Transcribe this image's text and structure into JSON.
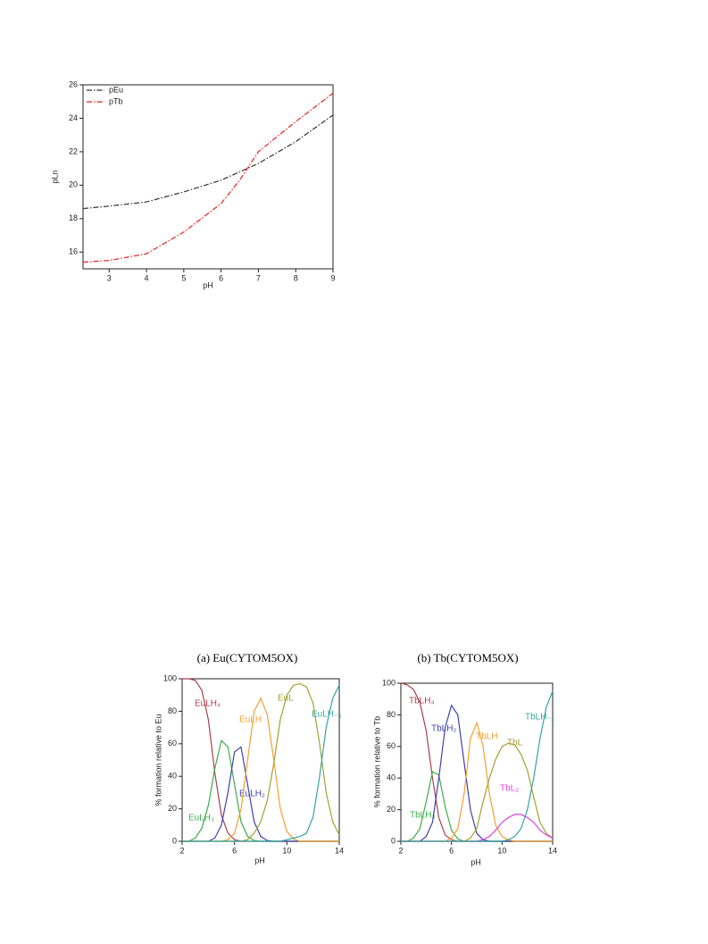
{
  "chart_data": [
    {
      "type": "line",
      "x_label": "pH",
      "y_label": "pLn",
      "legend": "upper left",
      "x": [
        2.3,
        3,
        4,
        5,
        6,
        6.5,
        7,
        8,
        9
      ],
      "series": [
        {
          "name": "pEu",
          "color": "#333333",
          "values": [
            18.6,
            18.75,
            19.0,
            19.6,
            20.3,
            20.8,
            21.3,
            22.6,
            24.2
          ]
        },
        {
          "name": "pTb",
          "color": "#e52222",
          "values": [
            15.4,
            15.5,
            15.9,
            17.2,
            18.9,
            20.3,
            22.0,
            23.8,
            25.5
          ]
        }
      ],
      "xlim": [
        2.3,
        9
      ],
      "xticks": [
        3,
        4,
        5,
        6,
        7,
        8,
        9
      ],
      "ylim": [
        15,
        26
      ],
      "yticks": [
        16,
        18,
        20,
        22,
        24,
        26
      ]
    },
    {
      "type": "line",
      "title": "(a) Eu(CYTOM5OX)",
      "x_label": "pH",
      "y_label": "% formation relative to Eu",
      "x": [
        2,
        2.5,
        3,
        3.5,
        4,
        4.5,
        5,
        5.5,
        6,
        6.5,
        7,
        7.5,
        8,
        8.5,
        9,
        9.5,
        10,
        10.5,
        11,
        11.5,
        12,
        12.5,
        13,
        13.5,
        14
      ],
      "series": [
        {
          "name": "EuLH₄",
          "color": "#a8404c",
          "values": [
            100,
            100,
            99,
            93,
            75,
            42,
            16,
            5,
            1,
            0,
            0,
            0,
            0,
            0,
            0,
            0,
            0,
            0,
            0,
            0,
            0,
            0,
            0,
            0,
            0
          ]
        },
        {
          "name": "EuLH₃",
          "color": "#3cae4a",
          "values": [
            0,
            0,
            2,
            8,
            22,
            45,
            62,
            58,
            35,
            12,
            3,
            0.5,
            0,
            0,
            0,
            0,
            0,
            0,
            0,
            0,
            0,
            0,
            0,
            0,
            0
          ]
        },
        {
          "name": "EuLH₂",
          "color": "#4040b0",
          "values": [
            0,
            0,
            0,
            0,
            0,
            2,
            10,
            30,
            55,
            58,
            35,
            12,
            3,
            0.5,
            0,
            0,
            0,
            0,
            0,
            0,
            0,
            0,
            0,
            0,
            0
          ]
        },
        {
          "name": "EuLH",
          "color": "#f5a030",
          "values": [
            0,
            0,
            0,
            0,
            0,
            0,
            0,
            1,
            5,
            20,
            50,
            80,
            88,
            78,
            50,
            20,
            6,
            1.5,
            0,
            0,
            0,
            0,
            0,
            0,
            0
          ]
        },
        {
          "name": "EuL",
          "color": "#a3a032",
          "values": [
            0,
            0,
            0,
            0,
            0,
            0,
            0,
            0,
            0,
            0,
            1,
            5,
            12,
            25,
            48,
            75,
            90,
            96,
            97,
            95,
            85,
            60,
            30,
            12,
            4
          ]
        },
        {
          "name": "EuLH₋₁",
          "color": "#33a3a3",
          "values": [
            0,
            0,
            0,
            0,
            0,
            0,
            0,
            0,
            0,
            0,
            0,
            0,
            0,
            0,
            0,
            0,
            1,
            2,
            3,
            5,
            15,
            40,
            70,
            88,
            96
          ]
        }
      ],
      "xlim": [
        2,
        14
      ],
      "xticks": [
        2,
        6,
        10,
        14
      ],
      "ylim": [
        0,
        100
      ],
      "yticks": [
        0,
        20,
        40,
        60,
        80,
        100
      ]
    },
    {
      "type": "line",
      "title": "(b) Tb(CYTOM5OX)",
      "x_label": "pH",
      "y_label": "% formation relative to Tb",
      "x": [
        2,
        2.5,
        3,
        3.5,
        4,
        4.5,
        5,
        5.5,
        6,
        6.5,
        7,
        7.5,
        8,
        8.5,
        9,
        9.5,
        10,
        10.5,
        11,
        11.5,
        12,
        12.5,
        13,
        13.5,
        14
      ],
      "series": [
        {
          "name": "TbLH₄",
          "color": "#a8404c",
          "values": [
            100,
            99,
            96,
            88,
            70,
            40,
            15,
            4,
            1,
            0,
            0,
            0,
            0,
            0,
            0,
            0,
            0,
            0,
            0,
            0,
            0,
            0,
            0,
            0,
            0
          ]
        },
        {
          "name": "TbLH₃",
          "color": "#3cae4a",
          "values": [
            0,
            0,
            2,
            8,
            25,
            44,
            42,
            22,
            7,
            1.5,
            0,
            0,
            0,
            0,
            0,
            0,
            0,
            0,
            0,
            0,
            0,
            0,
            0,
            0,
            0
          ]
        },
        {
          "name": "TbLH₂",
          "color": "#4040b0",
          "values": [
            0,
            0,
            0,
            0,
            3,
            12,
            40,
            72,
            86,
            80,
            50,
            20,
            5,
            1,
            0,
            0,
            0,
            0,
            0,
            0,
            0,
            0,
            0,
            0,
            0
          ]
        },
        {
          "name": "TbLH",
          "color": "#f5a030",
          "values": [
            0,
            0,
            0,
            0,
            0,
            0,
            0,
            0,
            2,
            8,
            30,
            65,
            75,
            60,
            30,
            10,
            3,
            1,
            0,
            0,
            0,
            0,
            0,
            0,
            0
          ]
        },
        {
          "name": "TbL",
          "color": "#a3a032",
          "values": [
            0,
            0,
            0,
            0,
            0,
            0,
            0,
            0,
            0,
            0,
            0,
            2,
            8,
            25,
            40,
            52,
            60,
            62,
            61,
            55,
            45,
            28,
            12,
            5,
            2
          ]
        },
        {
          "name": "TbL₂",
          "color": "#e040e0",
          "values": [
            0,
            0,
            0,
            0,
            0,
            0,
            0,
            0,
            0,
            0,
            0,
            0,
            0,
            1,
            3,
            7,
            12,
            15,
            17,
            17,
            15,
            12,
            7,
            4,
            2
          ]
        },
        {
          "name": "TbLH₋₁",
          "color": "#33a3a3",
          "values": [
            0,
            0,
            0,
            0,
            0,
            0,
            0,
            0,
            0,
            0,
            0,
            0,
            0,
            0,
            0,
            0,
            0,
            1,
            3,
            8,
            20,
            40,
            65,
            85,
            95
          ]
        }
      ],
      "xlim": [
        2,
        14
      ],
      "xticks": [
        2,
        6,
        10,
        14
      ],
      "ylim": [
        0,
        100
      ],
      "yticks": [
        0,
        20,
        40,
        60,
        80,
        100
      ]
    }
  ]
}
